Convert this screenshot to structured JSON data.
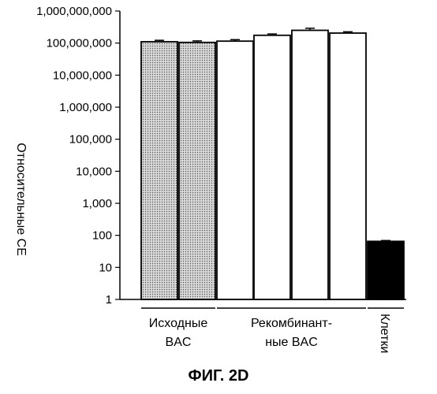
{
  "chart_data": {
    "type": "bar",
    "title": "",
    "ylabel": "Относительные СЕ",
    "yscale": "log",
    "ylim": [
      1,
      1000000000
    ],
    "yticks": [
      "1",
      "10",
      "100",
      "1,000",
      "10,000",
      "100,000",
      "1,000,000",
      "10,000,000",
      "100,000,000",
      "1,000,000,000"
    ],
    "groups": [
      {
        "label_lines": [
          "Исходные",
          "BAC"
        ],
        "bars": [
          0,
          1
        ]
      },
      {
        "label_lines": [
          "Рекомбинант-",
          "ные BAC"
        ],
        "bars": [
          2,
          3,
          4,
          5
        ]
      },
      {
        "label_lines": [
          "Клетки"
        ],
        "bars": [
          6
        ],
        "vertical": true
      }
    ],
    "series": [
      {
        "values": [
          110000000,
          105000000,
          115000000,
          175000000,
          250000000,
          205000000,
          65
        ],
        "errors": [
          12000000,
          12000000,
          13000000,
          18000000,
          40000000,
          20000000,
          4
        ],
        "fills": [
          "dotted",
          "dotted",
          "white",
          "white",
          "white",
          "white",
          "black"
        ]
      }
    ],
    "grid": false,
    "legend": "none"
  },
  "caption": "ФИГ. 2D"
}
